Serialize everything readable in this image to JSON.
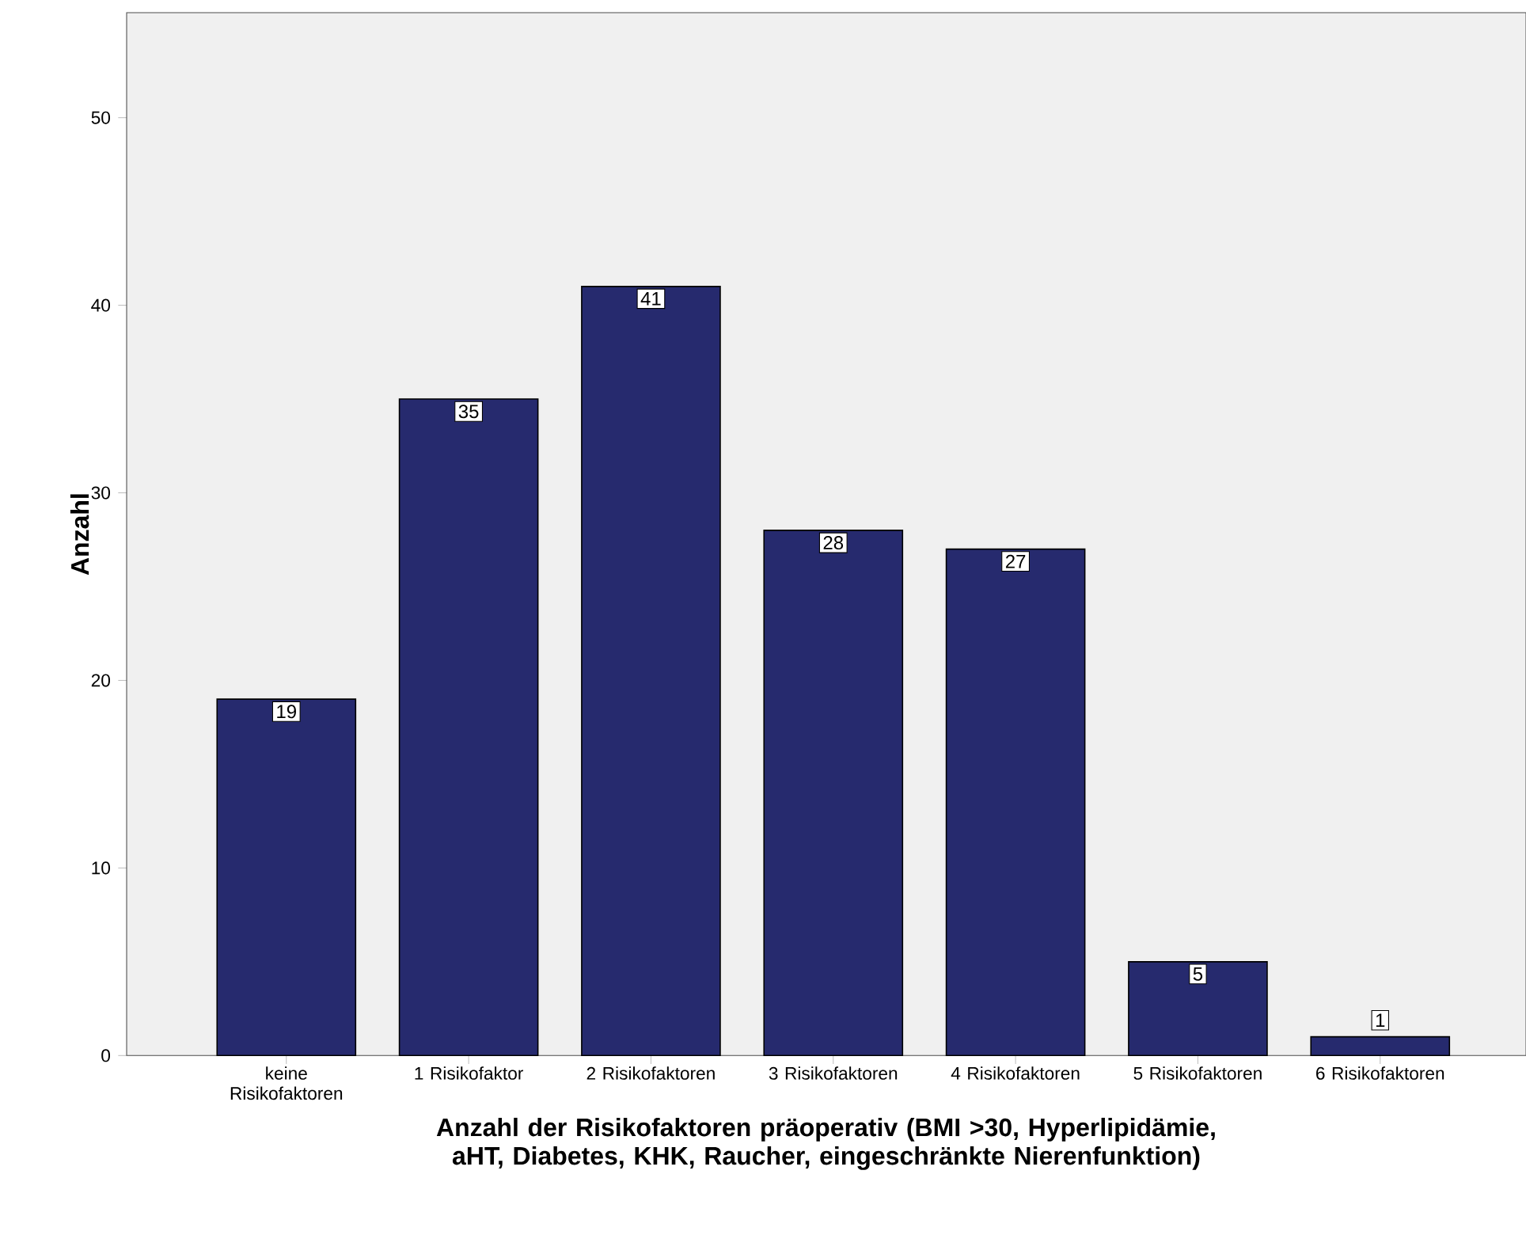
{
  "chart_data": {
    "type": "bar",
    "categories": [
      "keine Risikofaktoren",
      "1 Risikofaktor",
      "2 Risikofaktoren",
      "3 Risikofaktoren",
      "4 Risikofaktoren",
      "5 Risikofaktoren",
      "6 Risikofaktoren"
    ],
    "values": [
      19,
      35,
      41,
      28,
      27,
      5,
      1
    ],
    "color": "#262a6e",
    "ylim": [
      0,
      55.6
    ],
    "yticks": [
      0,
      10,
      20,
      30,
      40,
      50
    ],
    "ylabel": "Anzahl",
    "xlabel": "Anzahl der Risikofaktoren präoperativ (BMI >30, Hyperlipidämie, aHT, Diabetes, KHK, Raucher, eingeschränkte Nierenfunktion)",
    "data_labels": true
  }
}
